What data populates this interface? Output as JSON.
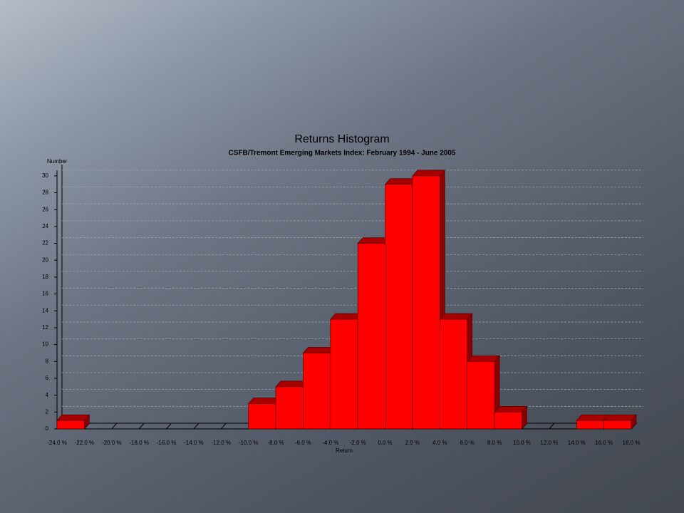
{
  "chart_data": {
    "type": "histogram",
    "title": "Returns Histogram",
    "subtitle": "CSFB/Tremont Emerging Markets Index: February 1994 - June 2005",
    "y_label": "Number",
    "x_label": "Return",
    "color": "#ff0000",
    "bins": [
      -24,
      -22,
      -20,
      -18,
      -16,
      -14,
      -12,
      -10,
      -8,
      -6,
      -4,
      -2,
      0,
      2,
      4,
      6,
      8,
      10,
      12,
      14,
      16,
      18
    ],
    "counts": [
      1,
      0,
      0,
      0,
      0,
      0,
      0,
      3,
      5,
      9,
      13,
      22,
      29,
      30,
      13,
      8,
      2,
      0,
      0,
      1,
      1
    ],
    "xlim": [
      -24,
      18
    ],
    "xticks": [
      {
        "value": -24,
        "label": "-24.0 %"
      },
      {
        "value": -22,
        "label": "-22.0 %"
      },
      {
        "value": -20,
        "label": "-20.0 %"
      },
      {
        "value": -18,
        "label": "-18.0 %"
      },
      {
        "value": -16,
        "label": "-16.0 %"
      },
      {
        "value": -14,
        "label": "-14.0 %"
      },
      {
        "value": -12,
        "label": "-12.0 %"
      },
      {
        "value": -10,
        "label": "-10.0 %"
      },
      {
        "value": -8,
        "label": "-8.0 %"
      },
      {
        "value": -6,
        "label": "-6.0 %"
      },
      {
        "value": -4,
        "label": "-4.0 %"
      },
      {
        "value": -2,
        "label": "-2.0 %"
      },
      {
        "value": 0,
        "label": "0.0 %"
      },
      {
        "value": 2,
        "label": "2.0 %"
      },
      {
        "value": 4,
        "label": "4.0 %"
      },
      {
        "value": 6,
        "label": "6.0 %"
      },
      {
        "value": 8,
        "label": "8.0 %"
      },
      {
        "value": 10,
        "label": "10.0 %"
      },
      {
        "value": 12,
        "label": "12.0 %"
      },
      {
        "value": 14,
        "label": "14.0 %"
      },
      {
        "value": 16,
        "label": "16.0 %"
      },
      {
        "value": 18,
        "label": "18.0 %"
      }
    ],
    "ylim": [
      0,
      31
    ],
    "yticks": [
      0,
      2,
      4,
      6,
      8,
      10,
      12,
      14,
      16,
      18,
      20,
      22,
      24,
      26,
      28,
      30
    ],
    "grid": true
  }
}
